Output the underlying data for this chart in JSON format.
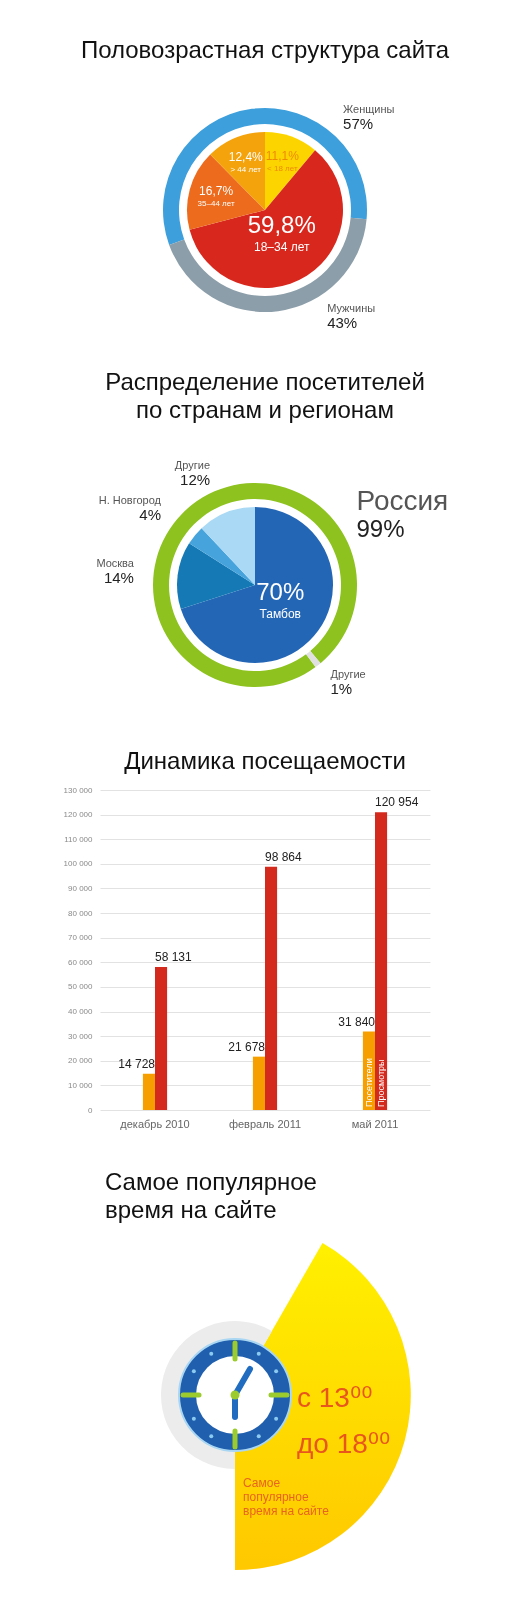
{
  "chart_data": [
    {
      "type": "pie",
      "title": "Половозрастная структура сайта",
      "categories": [
        "< 18 лет",
        "18–34 лет",
        "35–44 лет",
        "> 44 лет"
      ],
      "values": [
        11.1,
        59.8,
        16.7,
        12.4
      ],
      "value_labels": [
        "11,1%",
        "59,8%",
        "16,7%",
        "12,4%"
      ],
      "colors": [
        "#fcd500",
        "#d8281e",
        "#ec6b1c",
        "#f5a30c"
      ]
    },
    {
      "type": "donut",
      "categories": [
        "Женщины",
        "Мужчины"
      ],
      "values": [
        57,
        43
      ],
      "value_labels": [
        "57%",
        "43%"
      ],
      "colors": [
        "#3d9fdc",
        "#8c9ea9"
      ]
    },
    {
      "type": "pie",
      "title": "Распределение посетителей по странам и регионам",
      "categories": [
        "Тамбов",
        "Москва",
        "Н. Новгород",
        "Другие"
      ],
      "values": [
        70,
        14,
        4,
        12
      ],
      "value_labels": [
        "70%",
        "14%",
        "4%",
        "12%"
      ],
      "colors": [
        "#2466b6",
        "#1479b5",
        "#46a3dc",
        "#a9d9f5"
      ]
    },
    {
      "type": "donut",
      "categories": [
        "Россия",
        "Другие"
      ],
      "values": [
        99,
        1
      ],
      "value_labels": [
        "99%",
        "1%"
      ],
      "colors": [
        "#8dc21f",
        "#e0e0e0"
      ]
    },
    {
      "type": "bar",
      "title": "Динамика посещаемости",
      "categories": [
        "декабрь 2010",
        "февраль 2011",
        "май 2011"
      ],
      "series": [
        {
          "name": "Посетители",
          "color": "#f5a000",
          "values": [
            14728,
            21678,
            31840
          ],
          "value_labels": [
            "14 728",
            "21 678",
            "31 840"
          ]
        },
        {
          "name": "Просмотры",
          "color": "#d42a1e",
          "values": [
            58131,
            98864,
            120954
          ],
          "value_labels": [
            "58 131",
            "98 864",
            "120 954"
          ]
        }
      ],
      "ylim": [
        0,
        130000
      ],
      "yticks": [
        0,
        {
          "value": 10000,
          "label": "10 000"
        },
        {
          "value": 20000,
          "label": "20 000"
        },
        {
          "value": 30000,
          "label": "30 000"
        },
        {
          "value": 40000,
          "label": "40 000"
        },
        {
          "value": 50000,
          "label": "50 000"
        },
        {
          "value": 60000,
          "label": "60 000"
        },
        {
          "value": 70000,
          "label": "70 000"
        },
        {
          "value": 80000,
          "label": "80 000"
        },
        {
          "value": 90000,
          "label": "90 000"
        },
        {
          "value": 100000,
          "label": "100 000"
        },
        {
          "value": 110000,
          "label": "110 000"
        },
        {
          "value": 120000,
          "label": "120 000"
        },
        {
          "value": 130000,
          "label": "130 000"
        }
      ],
      "grid": "y"
    },
    {
      "type": "other",
      "title": "Самое популярное время на сайте",
      "annotations": [
        "с 13⁰⁰",
        "до 18⁰⁰",
        "Самое популярное время на сайте"
      ]
    }
  ]
}
